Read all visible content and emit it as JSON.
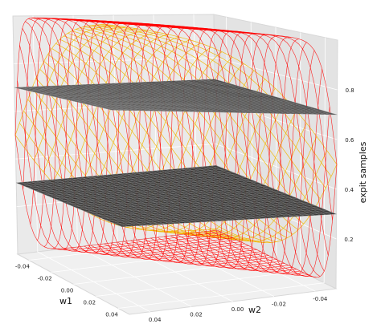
{
  "chart_data": {
    "type": "surface3d",
    "title": "",
    "xlabel": "w1",
    "ylabel": "w2",
    "zlabel": "expit samples",
    "xlim": [
      -0.05,
      0.05
    ],
    "ylim": [
      -0.05,
      0.05
    ],
    "zlim": [
      0.0,
      1.0
    ],
    "x_ticks": [
      "0.04",
      "0.02",
      "0.00",
      "-0.02",
      "-0.04"
    ],
    "y_ticks": [
      "0.04",
      "0.02",
      "0.00",
      "-0.02",
      "-0.04"
    ],
    "z_ticks": [
      "0.2",
      "0.4",
      "0.6",
      "0.8"
    ],
    "grid": true,
    "surfaces": [
      {
        "kind": "sigmoid",
        "function": "expit(k*(w1+w2)/2)",
        "steepness": 100,
        "color": "#f2b705"
      },
      {
        "kind": "sigmoid",
        "function": "expit(k*(w1+w2)/2)",
        "steepness": 600,
        "color": "#ff0000"
      },
      {
        "kind": "plane",
        "z": 0.7,
        "color": "#2a2a2a"
      },
      {
        "kind": "plane",
        "z": 0.3,
        "color": "#2a2a2a"
      }
    ]
  }
}
